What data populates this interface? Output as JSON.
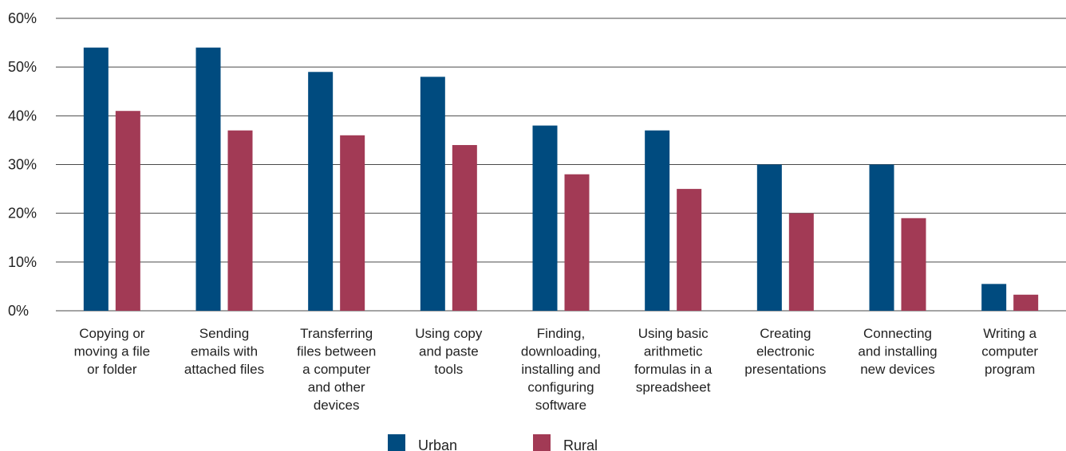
{
  "chart_data": {
    "type": "bar",
    "categories": [
      [
        "Copying or",
        "moving a file",
        "or folder"
      ],
      [
        "Sending",
        "emails with",
        "attached files"
      ],
      [
        "Transferring",
        "files between",
        "a computer",
        "and other",
        "devices"
      ],
      [
        "Using copy",
        "and paste",
        "tools"
      ],
      [
        "Finding,",
        "downloading,",
        "installing and",
        "configuring",
        "software"
      ],
      [
        "Using basic",
        "arithmetic",
        "formulas in a",
        "spreadsheet"
      ],
      [
        "Creating",
        "electronic",
        "presentations"
      ],
      [
        "Connecting",
        "and installing",
        "new devices"
      ],
      [
        "Writing a",
        "computer",
        "program"
      ]
    ],
    "series": [
      {
        "name": "Urban",
        "color": "#004B7F",
        "values": [
          54,
          54,
          49,
          48,
          38,
          37,
          30,
          30,
          5.5
        ]
      },
      {
        "name": "Rural",
        "color": "#A23A55",
        "values": [
          41,
          37,
          36,
          34,
          28,
          25,
          20,
          19,
          3.3
        ]
      }
    ],
    "yticks": [
      "0%",
      "10%",
      "20%",
      "30%",
      "40%",
      "50%",
      "60%"
    ],
    "ylim": [
      0,
      60
    ],
    "grid": true,
    "legend_position": "bottom"
  }
}
